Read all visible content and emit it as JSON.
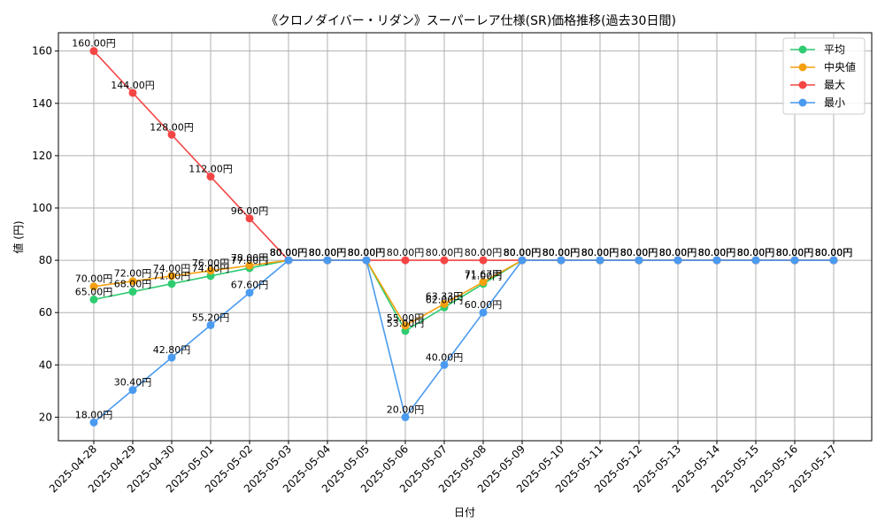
{
  "chart_data": {
    "type": "line",
    "title": "《クロノダイバー・リダン》スーパーレア仕様(SR)価格推移(過去30日間)",
    "xlabel": "日付",
    "ylabel": "値 (円)",
    "ylim": [
      11,
      167
    ],
    "yticks": [
      20,
      40,
      60,
      80,
      100,
      120,
      140,
      160
    ],
    "grid": true,
    "legend_position": "top-right",
    "value_suffix": "円",
    "categories": [
      "2025-04-28",
      "2025-04-29",
      "2025-04-30",
      "2025-05-01",
      "2025-05-02",
      "2025-05-03",
      "2025-05-04",
      "2025-05-05",
      "2025-05-06",
      "2025-05-07",
      "2025-05-08",
      "2025-05-09",
      "2025-05-10",
      "2025-05-11",
      "2025-05-12",
      "2025-05-13",
      "2025-05-14",
      "2025-05-15",
      "2025-05-16",
      "2025-05-17"
    ],
    "series": [
      {
        "name": "平均",
        "color": "#2ecc71",
        "values": [
          65,
          68,
          71,
          74,
          77,
          80,
          80,
          80,
          53,
          62,
          71,
          80,
          80,
          80,
          80,
          80,
          80,
          80,
          80,
          80
        ]
      },
      {
        "name": "中央値",
        "color": "#f5a00e",
        "values": [
          70,
          72,
          74,
          76,
          78,
          80,
          80,
          80,
          55,
          63.33,
          71.67,
          80,
          80,
          80,
          80,
          80,
          80,
          80,
          80,
          80
        ]
      },
      {
        "name": "最大",
        "color": "#f44545",
        "values": [
          160,
          144,
          128,
          112,
          96,
          80,
          80,
          80,
          80,
          80,
          80,
          80,
          80,
          80,
          80,
          80,
          80,
          80,
          80,
          80
        ]
      },
      {
        "name": "最小",
        "color": "#4a9af0",
        "values": [
          18,
          30.4,
          42.8,
          55.2,
          67.6,
          80,
          80,
          80,
          20,
          40,
          60,
          80,
          80,
          80,
          80,
          80,
          80,
          80,
          80,
          80
        ]
      }
    ]
  }
}
